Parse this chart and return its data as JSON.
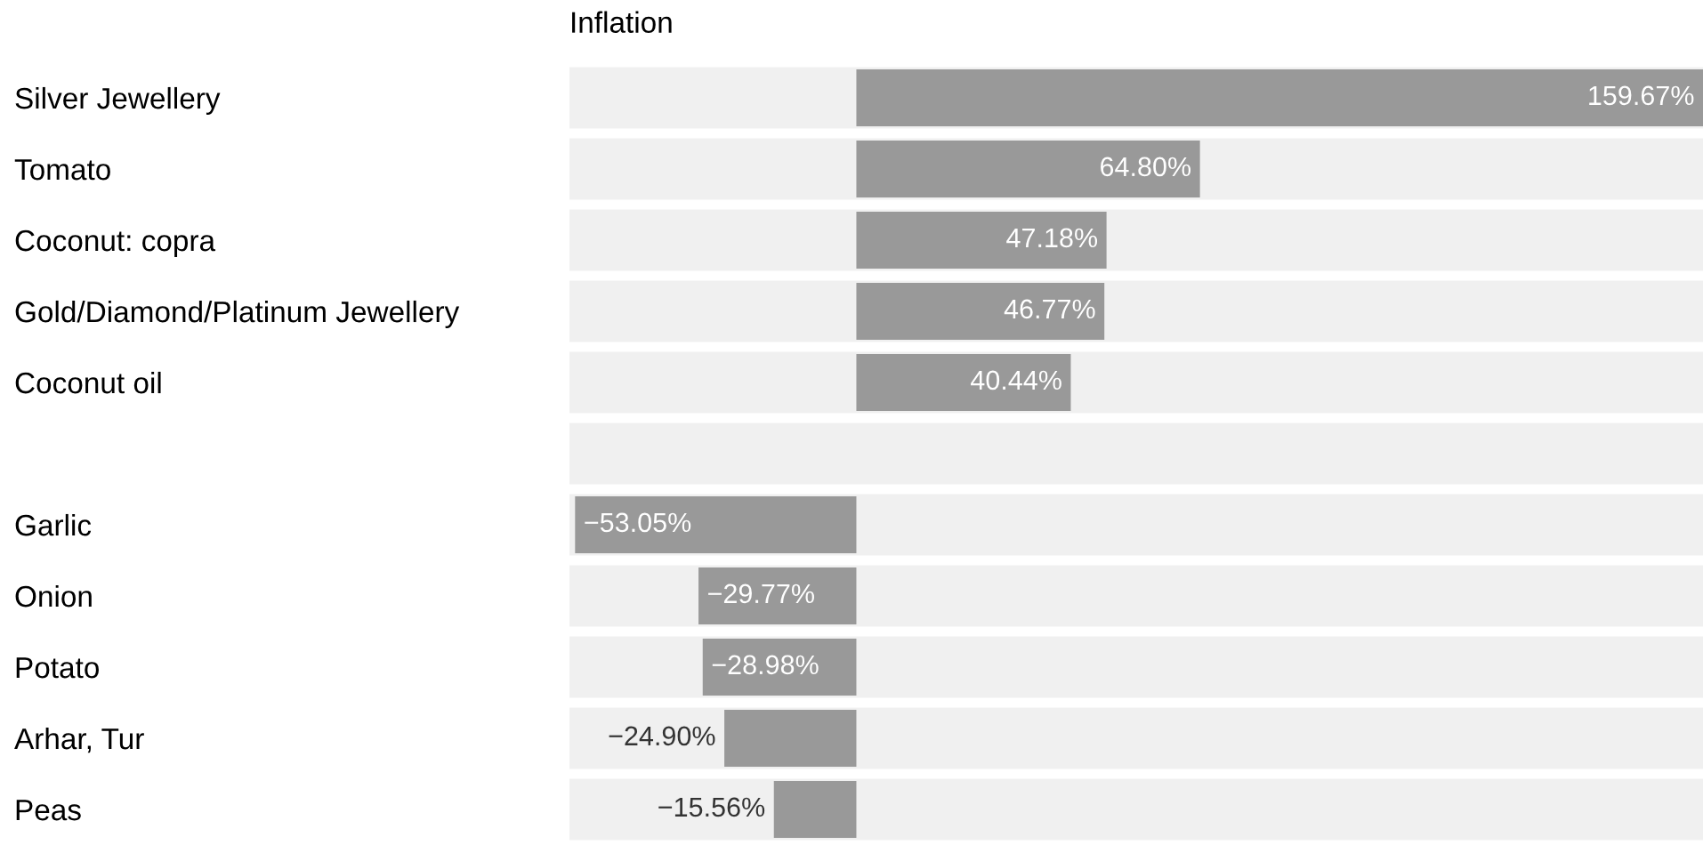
{
  "chart_data": {
    "type": "bar",
    "orientation": "horizontal",
    "title": "Inflation",
    "categories": [
      "Silver Jewellery",
      "Tomato",
      "Coconut: copra",
      "Gold/Diamond/Platinum Jewellery",
      "Coconut oil",
      null,
      "Garlic",
      "Onion",
      "Potato",
      "Arhar, Tur",
      "Peas"
    ],
    "values": [
      159.67,
      64.8,
      47.18,
      46.77,
      40.44,
      null,
      -53.05,
      -29.77,
      -28.98,
      -24.9,
      -15.56
    ],
    "value_labels": [
      "159.67%",
      "64.80%",
      "47.18%",
      "46.77%",
      "40.44%",
      null,
      "−53.05%",
      "−29.77%",
      "−28.98%",
      "−24.90%",
      "−15.56%"
    ],
    "color": "#999999",
    "grid": false,
    "legend": false
  }
}
